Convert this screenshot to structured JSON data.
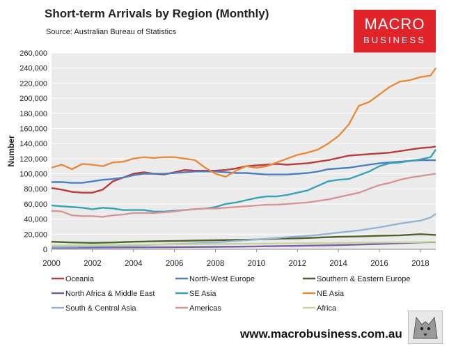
{
  "header": {
    "title": "Short-term Arrivals by Region (Monthly)",
    "source": "Source: Australian Bureau of Statistics"
  },
  "logo": {
    "line1": "MACRO",
    "line2": "BUSINESS",
    "color": "#e0242a"
  },
  "footer": {
    "url": "www.macrobusiness.com.au"
  },
  "chart_data": {
    "type": "line",
    "ylabel": "Number",
    "xlabel": "",
    "ylim": [
      0,
      260000
    ],
    "xlim": [
      2000,
      2018.75
    ],
    "yticks": [
      "0",
      "20,000",
      "40,000",
      "60,000",
      "80,000",
      "100,000",
      "120,000",
      "140,000",
      "160,000",
      "180,000",
      "200,000",
      "220,000",
      "240,000",
      "260,000"
    ],
    "xticks": [
      "2000",
      "2002",
      "2004",
      "2006",
      "2008",
      "2010",
      "2012",
      "2014",
      "2016",
      "2018"
    ],
    "grid": true,
    "legend_position": "bottom",
    "series": [
      {
        "name": "Oceania",
        "color": "#b83a3c",
        "x": [
          2000,
          2000.5,
          2001,
          2001.5,
          2002,
          2002.5,
          2003,
          2003.5,
          2004,
          2004.5,
          2005,
          2005.5,
          2006,
          2006.5,
          2007,
          2007.5,
          2008,
          2008.5,
          2009,
          2009.5,
          2010,
          2010.5,
          2011,
          2011.5,
          2012,
          2012.5,
          2013,
          2013.5,
          2014,
          2014.5,
          2015,
          2015.5,
          2016,
          2016.5,
          2017,
          2017.5,
          2018,
          2018.5,
          2018.75
        ],
        "values": [
          81000,
          79000,
          76000,
          75000,
          75000,
          79000,
          90000,
          95000,
          100000,
          102000,
          100000,
          99000,
          102000,
          105000,
          104000,
          104000,
          104000,
          105000,
          107000,
          110000,
          111000,
          112000,
          113000,
          112000,
          113000,
          114000,
          116000,
          118000,
          121000,
          124000,
          125000,
          126000,
          127000,
          128000,
          130000,
          132000,
          134000,
          135000,
          136000
        ]
      },
      {
        "name": "North-West Europe",
        "color": "#4a7fc1",
        "x": [
          2000,
          2000.5,
          2001,
          2001.5,
          2002,
          2002.5,
          2003,
          2003.5,
          2004,
          2004.5,
          2005,
          2005.5,
          2006,
          2006.5,
          2007,
          2007.5,
          2008,
          2008.5,
          2009,
          2009.5,
          2010,
          2010.5,
          2011,
          2011.5,
          2012,
          2012.5,
          2013,
          2013.5,
          2014,
          2014.5,
          2015,
          2015.5,
          2016,
          2016.5,
          2017,
          2017.5,
          2018,
          2018.5,
          2018.75
        ],
        "values": [
          89000,
          89000,
          88000,
          88000,
          90000,
          92000,
          93000,
          95000,
          98000,
          100000,
          100000,
          100000,
          101000,
          102000,
          103000,
          103000,
          103000,
          102000,
          101000,
          101000,
          100000,
          99000,
          99000,
          99000,
          100000,
          101000,
          103000,
          106000,
          107000,
          108000,
          110000,
          112000,
          114000,
          115000,
          116000,
          117000,
          118000,
          118000,
          118000
        ]
      },
      {
        "name": "Southern & Eastern Europe",
        "color": "#4f6228",
        "x": [
          2000,
          2001,
          2002,
          2003,
          2004,
          2005,
          2006,
          2007,
          2008,
          2009,
          2010,
          2011,
          2012,
          2013,
          2014,
          2015,
          2016,
          2017,
          2018,
          2018.75
        ],
        "values": [
          10000,
          9000,
          8500,
          9000,
          10000,
          10500,
          11000,
          11500,
          12000,
          12500,
          13000,
          14000,
          14500,
          15500,
          16500,
          17000,
          18000,
          18500,
          20000,
          19000
        ]
      },
      {
        "name": "North Africa & Middle East",
        "color": "#7b5ea7",
        "x": [
          2000,
          2002,
          2004,
          2006,
          2008,
          2010,
          2012,
          2014,
          2016,
          2018,
          2018.75
        ],
        "values": [
          2000,
          2200,
          2500,
          2800,
          3200,
          3800,
          4500,
          5500,
          7000,
          9000,
          9500
        ]
      },
      {
        "name": "SE Asia",
        "color": "#3aa2b8",
        "x": [
          2000,
          2000.5,
          2001,
          2001.5,
          2002,
          2002.5,
          2003,
          2003.5,
          2004,
          2004.5,
          2005,
          2005.5,
          2006,
          2006.5,
          2007,
          2007.5,
          2008,
          2008.5,
          2009,
          2009.5,
          2010,
          2010.5,
          2011,
          2011.5,
          2012,
          2012.5,
          2013,
          2013.5,
          2014,
          2014.5,
          2015,
          2015.5,
          2016,
          2016.5,
          2017,
          2017.5,
          2018,
          2018.5,
          2018.75
        ],
        "values": [
          58000,
          57000,
          56000,
          55000,
          53000,
          55000,
          54000,
          52000,
          52000,
          52000,
          50000,
          50000,
          51000,
          52000,
          53000,
          54000,
          56000,
          60000,
          62000,
          65000,
          68000,
          70000,
          70000,
          72000,
          75000,
          78000,
          84000,
          90000,
          92000,
          93000,
          98000,
          103000,
          110000,
          114000,
          115000,
          117000,
          119000,
          122000,
          132000
        ]
      },
      {
        "name": "NE Asia",
        "color": "#e88a3a",
        "x": [
          2000,
          2000.5,
          2001,
          2001.5,
          2002,
          2002.5,
          2003,
          2003.5,
          2004,
          2004.5,
          2005,
          2005.5,
          2006,
          2006.5,
          2007,
          2007.5,
          2008,
          2008.5,
          2009,
          2009.5,
          2010,
          2010.5,
          2011,
          2011.5,
          2012,
          2012.5,
          2013,
          2013.5,
          2014,
          2014.5,
          2015,
          2015.5,
          2016,
          2016.5,
          2017,
          2017.5,
          2018,
          2018.5,
          2018.75
        ],
        "values": [
          108000,
          112000,
          106000,
          113000,
          112000,
          110000,
          115000,
          116000,
          120000,
          122000,
          121000,
          122000,
          122000,
          120000,
          118000,
          108000,
          100000,
          96000,
          104000,
          110000,
          108000,
          110000,
          115000,
          120000,
          125000,
          128000,
          132000,
          140000,
          150000,
          165000,
          190000,
          195000,
          205000,
          215000,
          222000,
          224000,
          228000,
          230000,
          240000
        ]
      },
      {
        "name": "South & Central Asia",
        "color": "#95b3d7",
        "x": [
          2000,
          2002,
          2004,
          2006,
          2008,
          2009,
          2010,
          2011,
          2012,
          2013,
          2014,
          2015,
          2016,
          2017,
          2018,
          2018.5,
          2018.75
        ],
        "values": [
          3000,
          4000,
          5000,
          7000,
          9000,
          11000,
          13000,
          15000,
          17000,
          19000,
          22000,
          25000,
          29000,
          34000,
          38000,
          42000,
          47000
        ]
      },
      {
        "name": "Americas",
        "color": "#d99594",
        "x": [
          2000,
          2000.5,
          2001,
          2001.5,
          2002,
          2002.5,
          2003,
          2003.5,
          2004,
          2004.5,
          2005,
          2005.5,
          2006,
          2006.5,
          2007,
          2007.5,
          2008,
          2008.5,
          2009,
          2009.5,
          2010,
          2010.5,
          2011,
          2011.5,
          2012,
          2012.5,
          2013,
          2013.5,
          2014,
          2014.5,
          2015,
          2015.5,
          2016,
          2016.5,
          2017,
          2017.5,
          2018,
          2018.5,
          2018.75
        ],
        "values": [
          51000,
          50000,
          45000,
          44000,
          44000,
          43000,
          45000,
          46000,
          48000,
          48000,
          48000,
          49000,
          50000,
          52000,
          53000,
          54000,
          54000,
          55000,
          56000,
          57000,
          58000,
          59000,
          59000,
          60000,
          61000,
          62000,
          64000,
          66000,
          69000,
          72000,
          75000,
          80000,
          85000,
          88000,
          92000,
          95000,
          97000,
          99000,
          100000
        ]
      },
      {
        "name": "Africa",
        "color": "#c4d79b",
        "x": [
          2000,
          2002,
          2004,
          2006,
          2008,
          2010,
          2012,
          2014,
          2016,
          2018,
          2018.75
        ],
        "values": [
          5000,
          5500,
          6000,
          6500,
          7000,
          7500,
          8000,
          8500,
          9000,
          9500,
          10000
        ]
      }
    ]
  }
}
